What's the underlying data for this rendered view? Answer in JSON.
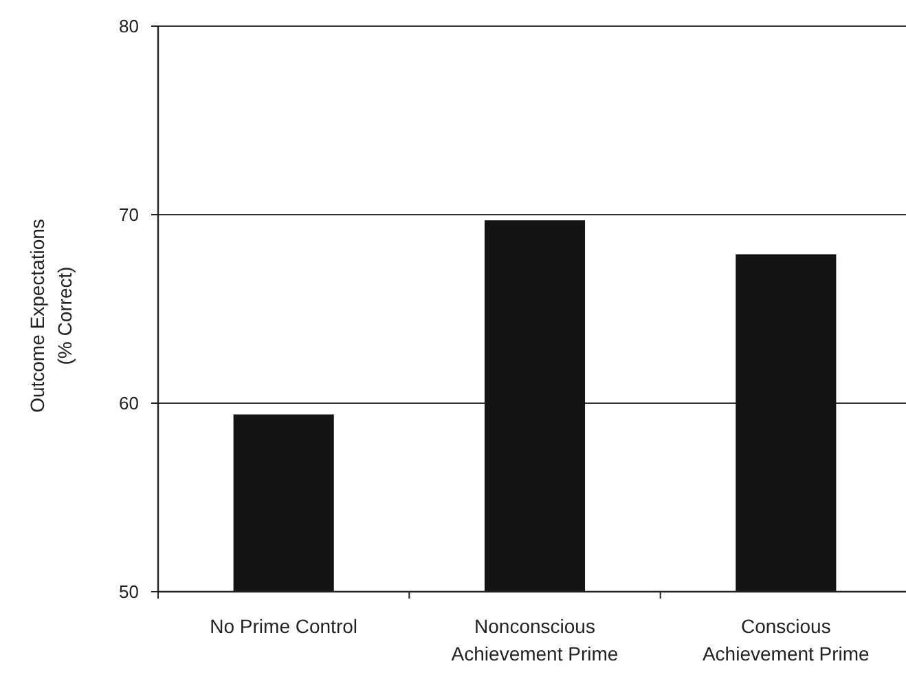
{
  "chart_data": {
    "type": "bar",
    "ylabel": "Outcome Expectations\n(% Correct)",
    "categories": [
      "No Prime Control",
      "Nonconscious Achievement Prime",
      "Conscious Achievement Prime"
    ],
    "values": [
      59.4,
      69.7,
      67.9
    ],
    "color": "#131413",
    "ylim": [
      50,
      80
    ],
    "yticks": [
      50,
      60,
      70,
      80
    ],
    "grid": "y"
  }
}
